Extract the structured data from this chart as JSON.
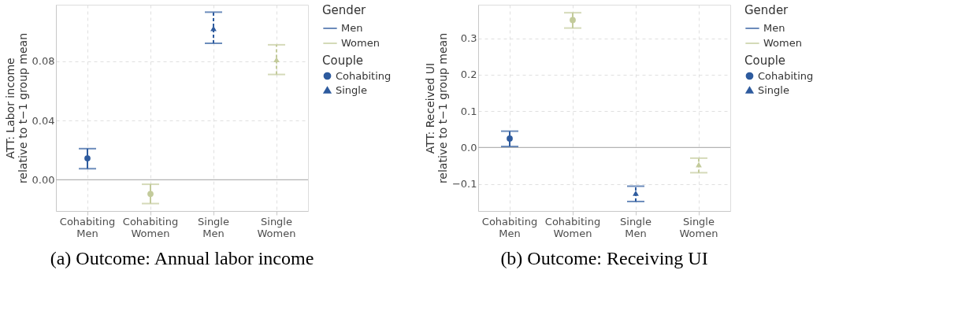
{
  "chart_data": [
    {
      "type": "scatter",
      "title": "(a) Outcome: Annual labor income",
      "ylabel": "ATT: Labor income\nrelative to t−1 group mean",
      "legend_title": [
        "Gender",
        "Couple"
      ],
      "categories": [
        "Cohabiting Men",
        "Cohabiting Women",
        "Single Men",
        "Single Women"
      ],
      "series": [
        {
          "name": "Men",
          "color": "#2e5b9e",
          "values": [
            null,
            null,
            null,
            null
          ]
        },
        {
          "name": "Women",
          "color": "#c3cb9b",
          "values": [
            null,
            null,
            null,
            null
          ]
        },
        {
          "name": "Cohabiting",
          "colors": [
            "#2e5b9e",
            "#c3cb9b",
            null,
            null
          ],
          "marker": "circle",
          "line_style": "solid",
          "values": [
            0.0145,
            -0.0095,
            null,
            null
          ],
          "errors": [
            [
              0.0075,
              0.021
            ],
            [
              -0.016,
              -0.003
            ],
            null,
            null
          ]
        },
        {
          "name": "Single",
          "colors": [
            null,
            null,
            "#2e5b9e",
            "#c3cb9b"
          ],
          "marker": "triangle",
          "line_style": "dashed",
          "values": [
            null,
            null,
            0.102,
            0.081
          ],
          "errors": [
            null,
            null,
            [
              0.092,
              0.113
            ],
            [
              0.071,
              0.091
            ]
          ]
        }
      ],
      "ylim": [
        -0.021,
        0.118
      ],
      "yticks": [
        {
          "value": 0,
          "label": "0.00"
        },
        {
          "value": 0.04,
          "label": "0.04"
        },
        {
          "value": 0.08,
          "label": "0.08"
        }
      ],
      "ref_lines": [
        {
          "axis": "y",
          "value": 0,
          "color": "#b3b3b3"
        }
      ],
      "grid": true,
      "legend": "right"
    },
    {
      "type": "scatter",
      "title": "(b) Outcome: Receiving UI",
      "ylabel": "ATT: Received UI\nrelative to t−1 group mean",
      "legend_title": [
        "Gender",
        "Couple"
      ],
      "categories": [
        "Cohabiting Men",
        "Cohabiting Women",
        "Single Men",
        "Single Women"
      ],
      "series": [
        {
          "name": "Men",
          "color": "#2e5b9e",
          "values": [
            null,
            null,
            null,
            null
          ]
        },
        {
          "name": "Women",
          "color": "#c3cb9b",
          "values": [
            null,
            null,
            null,
            null
          ]
        },
        {
          "name": "Cohabiting",
          "colors": [
            "#2e5b9e",
            "#c3cb9b",
            null,
            null
          ],
          "marker": "circle",
          "line_style": "solid",
          "values": [
            0.025,
            0.35,
            null,
            null
          ],
          "errors": [
            [
              0.003,
              0.045
            ],
            [
              0.328,
              0.37
            ],
            null,
            null
          ]
        },
        {
          "name": "Single",
          "colors": [
            null,
            null,
            "#2e5b9e",
            "#c3cb9b"
          ],
          "marker": "triangle",
          "line_style": "dashed",
          "values": [
            null,
            null,
            -0.125,
            -0.047
          ],
          "errors": [
            null,
            null,
            [
              -0.148,
              -0.106
            ],
            [
              -0.069,
              -0.029
            ]
          ]
        }
      ],
      "ylim": [
        -0.174,
        0.392
      ],
      "yticks": [
        {
          "value": -0.1,
          "label": "−0.1"
        },
        {
          "value": 0,
          "label": "0.0"
        },
        {
          "value": 0.1,
          "label": "0.1"
        },
        {
          "value": 0.2,
          "label": "0.2"
        },
        {
          "value": 0.3,
          "label": "0.3"
        }
      ],
      "ref_lines": [
        {
          "axis": "y",
          "value": 0,
          "color": "#b3b3b3"
        }
      ],
      "grid": true,
      "legend": "right"
    }
  ]
}
